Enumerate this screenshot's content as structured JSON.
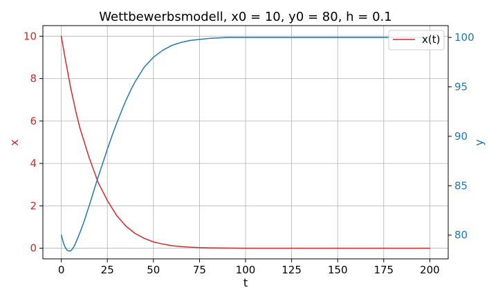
{
  "chart_data": {
    "type": "line",
    "title": "Wettbewerbsmodell, x0 = 10, y0 = 80, h = 0.1",
    "xlabel": "t",
    "ylabel_left": "x",
    "ylabel_right": "y",
    "xlim": [
      -10,
      210
    ],
    "ylim_left": [
      -0.5,
      10.5
    ],
    "ylim_right": [
      77.6,
      101.2
    ],
    "x_ticks": [
      0,
      25,
      50,
      75,
      100,
      125,
      150,
      175,
      200
    ],
    "y_left_ticks": [
      0,
      2,
      4,
      6,
      8,
      10
    ],
    "y_right_ticks": [
      80,
      85,
      90,
      95,
      100
    ],
    "grid": true,
    "legend_position": "top-right",
    "colors": {
      "left_axis": "#d62728",
      "right_axis": "#1f77b4"
    },
    "series": [
      {
        "name": "x(t)",
        "axis": "left",
        "color": "#d62728",
        "x": [
          0,
          2,
          5,
          8,
          10,
          15,
          20,
          25,
          30,
          35,
          40,
          45,
          50,
          55,
          60,
          65,
          70,
          75,
          80,
          90,
          100,
          125,
          150,
          175,
          200
        ],
        "y": [
          10.0,
          9.0,
          7.6,
          6.4,
          5.7,
          4.3,
          3.1,
          2.25,
          1.55,
          1.05,
          0.7,
          0.47,
          0.3,
          0.2,
          0.12,
          0.08,
          0.05,
          0.03,
          0.02,
          0.01,
          0.0,
          0.0,
          0.0,
          0.0,
          0.0
        ]
      },
      {
        "name": "",
        "axis": "right",
        "color": "#1f77b4",
        "x": [
          0,
          1,
          2,
          3,
          4,
          5,
          6,
          7,
          8,
          10,
          12,
          15,
          18,
          20,
          22,
          25,
          28,
          30,
          33,
          35,
          38,
          40,
          43,
          45,
          50,
          55,
          60,
          65,
          70,
          75,
          80,
          90,
          100,
          125,
          150,
          175,
          200
        ],
        "y": [
          80.0,
          79.3,
          78.8,
          78.5,
          78.4,
          78.4,
          78.6,
          78.9,
          79.3,
          80.2,
          81.2,
          82.9,
          84.7,
          85.9,
          87.0,
          88.7,
          90.3,
          91.3,
          92.7,
          93.6,
          94.8,
          95.5,
          96.4,
          97.0,
          98.0,
          98.7,
          99.2,
          99.5,
          99.7,
          99.8,
          99.9,
          100.0,
          100.0,
          100.0,
          100.0,
          100.0,
          100.0
        ]
      }
    ]
  }
}
